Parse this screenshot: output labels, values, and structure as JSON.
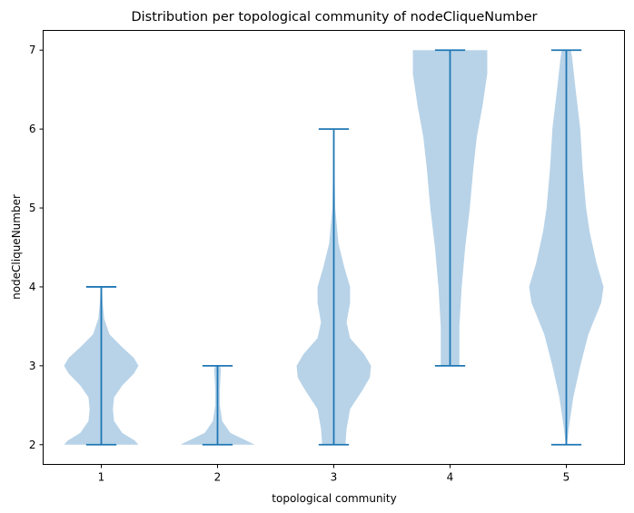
{
  "chart_data": {
    "type": "violin",
    "title": "Distribution per topological community of nodeCliqueNumber",
    "xlabel": "topological community",
    "ylabel": "nodeCliqueNumber",
    "categories": [
      "1",
      "2",
      "3",
      "4",
      "5"
    ],
    "yticks": [
      "2",
      "3",
      "4",
      "5",
      "6",
      "7"
    ],
    "ylim": [
      1.75,
      7.25
    ],
    "grid": false,
    "colors": {
      "body": "#b8d3e8",
      "line": "#1f77b4"
    },
    "violins": [
      {
        "category": "1",
        "min": 2,
        "max": 4,
        "profile": [
          [
            2.0,
            0.32
          ],
          [
            2.05,
            0.29
          ],
          [
            2.15,
            0.18
          ],
          [
            2.3,
            0.11
          ],
          [
            2.45,
            0.1
          ],
          [
            2.6,
            0.11
          ],
          [
            2.75,
            0.18
          ],
          [
            2.9,
            0.28
          ],
          [
            3.0,
            0.32
          ],
          [
            3.1,
            0.28
          ],
          [
            3.25,
            0.17
          ],
          [
            3.4,
            0.07
          ],
          [
            3.6,
            0.025
          ],
          [
            3.8,
            0.012
          ],
          [
            4.0,
            0.006
          ]
        ]
      },
      {
        "category": "2",
        "min": 2,
        "max": 3,
        "profile": [
          [
            2.0,
            0.32
          ],
          [
            2.05,
            0.25
          ],
          [
            2.15,
            0.11
          ],
          [
            2.3,
            0.04
          ],
          [
            2.5,
            0.02
          ],
          [
            2.7,
            0.02
          ],
          [
            2.85,
            0.025
          ],
          [
            2.95,
            0.03
          ],
          [
            3.0,
            0.02
          ]
        ]
      },
      {
        "category": "3",
        "min": 2,
        "max": 6,
        "profile": [
          [
            2.0,
            0.1
          ],
          [
            2.2,
            0.11
          ],
          [
            2.45,
            0.14
          ],
          [
            2.7,
            0.25
          ],
          [
            2.85,
            0.31
          ],
          [
            3.0,
            0.32
          ],
          [
            3.15,
            0.26
          ],
          [
            3.35,
            0.14
          ],
          [
            3.55,
            0.11
          ],
          [
            3.8,
            0.14
          ],
          [
            4.0,
            0.14
          ],
          [
            4.25,
            0.09
          ],
          [
            4.55,
            0.04
          ],
          [
            5.0,
            0.012
          ],
          [
            5.5,
            0.006
          ],
          [
            6.0,
            0.003
          ]
        ]
      },
      {
        "category": "4",
        "min": 3,
        "max": 7,
        "profile": [
          [
            3.0,
            0.08
          ],
          [
            3.5,
            0.08
          ],
          [
            4.0,
            0.1
          ],
          [
            4.5,
            0.13
          ],
          [
            5.0,
            0.17
          ],
          [
            5.5,
            0.2
          ],
          [
            5.9,
            0.23
          ],
          [
            6.3,
            0.28
          ],
          [
            6.7,
            0.32
          ],
          [
            7.0,
            0.32
          ]
        ]
      },
      {
        "category": "5",
        "min": 2,
        "max": 7,
        "profile": [
          [
            2.0,
            0.005
          ],
          [
            2.2,
            0.02
          ],
          [
            2.6,
            0.06
          ],
          [
            3.0,
            0.12
          ],
          [
            3.4,
            0.19
          ],
          [
            3.8,
            0.3
          ],
          [
            4.0,
            0.32
          ],
          [
            4.3,
            0.26
          ],
          [
            4.7,
            0.2
          ],
          [
            5.0,
            0.17
          ],
          [
            5.5,
            0.14
          ],
          [
            6.0,
            0.12
          ],
          [
            6.5,
            0.08
          ],
          [
            6.9,
            0.05
          ],
          [
            7.0,
            0.04
          ]
        ]
      }
    ]
  }
}
